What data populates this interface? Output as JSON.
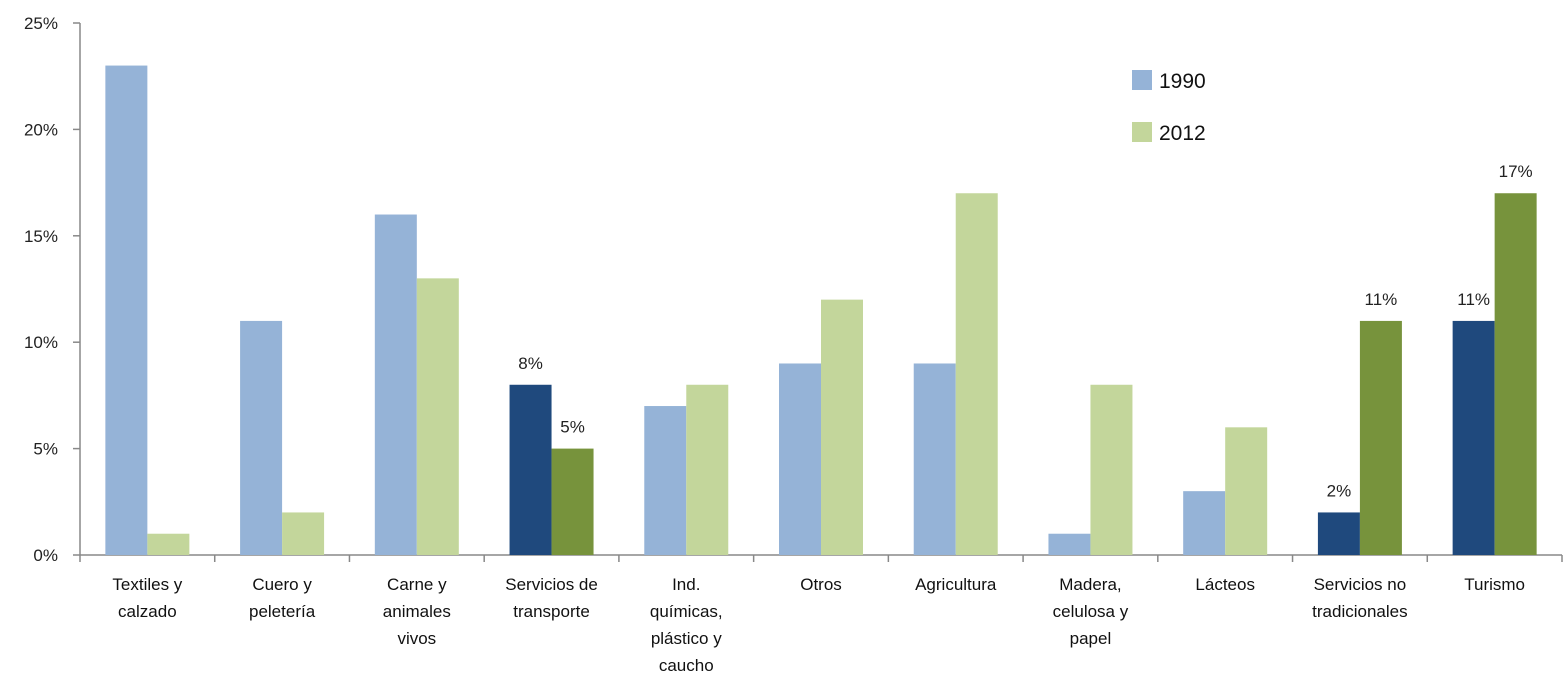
{
  "chart_data": {
    "type": "bar",
    "title": "",
    "xlabel": "",
    "ylabel": "",
    "ylim": [
      0,
      25
    ],
    "y_ticks": [
      "0%",
      "5%",
      "10%",
      "15%",
      "20%",
      "25%"
    ],
    "y_tick_values": [
      0,
      5,
      10,
      15,
      20,
      25
    ],
    "grid": false,
    "legend_position": "top-right",
    "categories": [
      [
        "Textiles y",
        "calzado"
      ],
      [
        "Cuero y",
        "peletería"
      ],
      [
        "Carne y",
        "animales",
        "vivos"
      ],
      [
        "Servicios de",
        "transporte"
      ],
      [
        "Ind.",
        "químicas,",
        "plástico y",
        "caucho"
      ],
      [
        "Otros"
      ],
      [
        "Agricultura"
      ],
      [
        "Madera,",
        "celulosa y",
        "papel"
      ],
      [
        "Lácteos"
      ],
      [
        "Servicios no",
        "tradicionales"
      ],
      [
        "Turismo"
      ]
    ],
    "series": [
      {
        "name": "1990",
        "values": [
          23,
          11,
          16,
          8,
          7,
          9,
          9,
          1,
          3,
          2,
          11
        ],
        "color": "#95b3d7",
        "highlight_color": "#1f497d",
        "data_labels": [
          "",
          "",
          "",
          "8%",
          "",
          "",
          "",
          "",
          "",
          "2%",
          "11%"
        ]
      },
      {
        "name": "2012",
        "values": [
          1,
          2,
          13,
          5,
          8,
          12,
          17,
          8,
          6,
          11,
          17
        ],
        "color": "#c3d69b",
        "highlight_color": "#77933c",
        "data_labels": [
          "",
          "",
          "",
          "5%",
          "",
          "",
          "",
          "",
          "",
          "11%",
          "17%"
        ]
      }
    ],
    "highlighted_categories": [
      3,
      9,
      10
    ]
  }
}
